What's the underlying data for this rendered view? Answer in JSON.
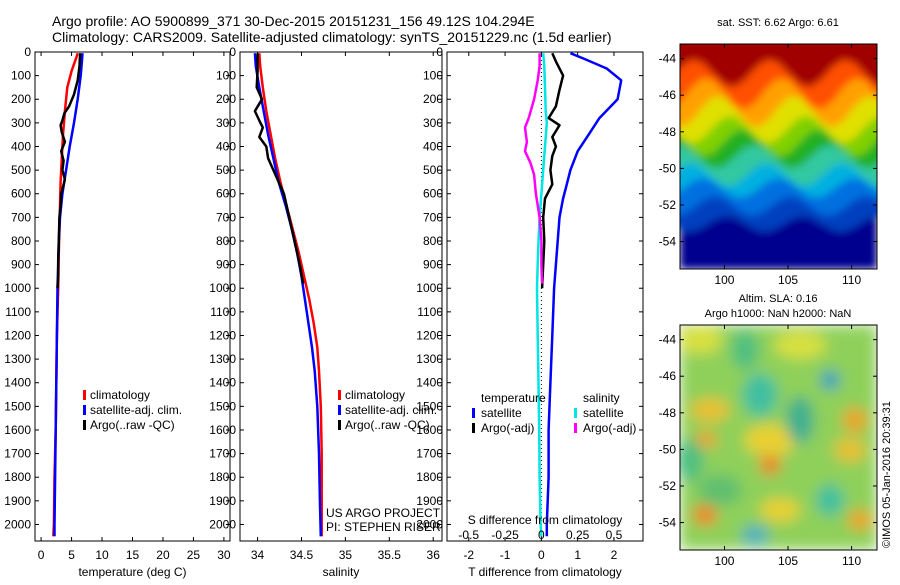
{
  "header": {
    "line1": "Argo profile: AO 5900899_371 30-Dec-2015 20151231_156 49.12S 104.294E",
    "line2": "Climatology: CARS2009. Satellite-adjusted climatology: synTS_20151229.nc (1.5d earlier)"
  },
  "project": {
    "line1": "US ARGO PROJECT",
    "line2": "PI: STEPHEN RISER"
  },
  "watermark": "©IMOS 05-Jan-2016 20:39:31",
  "colors": {
    "climatology": "#ff0000",
    "satellite": "#0000ff",
    "argo": "#000000",
    "sat_salinity": "#00e5e5",
    "argo_salinity": "#ff00ff"
  },
  "chart_data": [
    {
      "type": "line",
      "id": "temperature",
      "xlabel": "temperature (deg C)",
      "ylabel": "",
      "xlim": [
        -1,
        31
      ],
      "ylim": [
        2070,
        0
      ],
      "xticks": [
        0,
        5,
        10,
        15,
        20,
        25,
        30
      ],
      "yticks": [
        0,
        100,
        200,
        300,
        400,
        500,
        600,
        700,
        800,
        900,
        1000,
        1100,
        1200,
        1300,
        1400,
        1500,
        1600,
        1700,
        1800,
        1900,
        2000
      ],
      "legend": [
        "climatology",
        "satellite-adj. clim.",
        "Argo(..raw -QC)"
      ],
      "series": [
        {
          "name": "climatology",
          "color": "#ff0000",
          "points": [
            [
              6.0,
              5
            ],
            [
              5.7,
              30
            ],
            [
              5.0,
              80
            ],
            [
              4.3,
              150
            ],
            [
              3.9,
              250
            ],
            [
              3.6,
              350
            ],
            [
              3.4,
              450
            ],
            [
              3.2,
              550
            ],
            [
              3.1,
              650
            ],
            [
              3.0,
              750
            ],
            [
              2.9,
              850
            ],
            [
              2.8,
              1000
            ],
            [
              2.6,
              1200
            ],
            [
              2.5,
              1400
            ],
            [
              2.4,
              1600
            ],
            [
              2.2,
              1800
            ],
            [
              2.1,
              2000
            ],
            [
              2.0,
              2050
            ]
          ]
        },
        {
          "name": "satellite-adj. clim.",
          "color": "#0000ff",
          "points": [
            [
              6.8,
              5
            ],
            [
              6.7,
              40
            ],
            [
              6.5,
              100
            ],
            [
              6.0,
              200
            ],
            [
              5.4,
              300
            ],
            [
              4.7,
              400
            ],
            [
              4.1,
              500
            ],
            [
              3.5,
              600
            ],
            [
              3.1,
              700
            ],
            [
              2.9,
              800
            ],
            [
              2.8,
              900
            ],
            [
              2.7,
              1000
            ],
            [
              2.6,
              1200
            ],
            [
              2.5,
              1400
            ],
            [
              2.4,
              1600
            ],
            [
              2.3,
              1800
            ],
            [
              2.2,
              2000
            ],
            [
              2.2,
              2050
            ]
          ]
        },
        {
          "name": "Argo(..raw -QC)",
          "color": "#000000",
          "points": [
            [
              6.4,
              5
            ],
            [
              6.3,
              60
            ],
            [
              6.0,
              120
            ],
            [
              5.4,
              180
            ],
            [
              4.6,
              230
            ],
            [
              3.8,
              260
            ],
            [
              3.5,
              290
            ],
            [
              3.2,
              310
            ],
            [
              3.4,
              340
            ],
            [
              3.9,
              380
            ],
            [
              3.3,
              420
            ],
            [
              3.7,
              460
            ],
            [
              3.5,
              500
            ],
            [
              3.9,
              540
            ],
            [
              3.3,
              600
            ],
            [
              3.2,
              650
            ],
            [
              3.0,
              700
            ],
            [
              2.9,
              800
            ],
            [
              2.8,
              880
            ],
            [
              2.8,
              950
            ],
            [
              2.7,
              1000
            ]
          ]
        }
      ]
    },
    {
      "type": "line",
      "id": "salinity",
      "xlabel": "salinity",
      "ylabel": "",
      "xlim": [
        33.8,
        36.1
      ],
      "ylim": [
        2070,
        0
      ],
      "xticks": [
        34,
        34.5,
        35,
        35.5,
        36
      ],
      "yticks": [
        0,
        100,
        200,
        300,
        400,
        500,
        600,
        700,
        800,
        900,
        1000,
        1100,
        1200,
        1300,
        1400,
        1500,
        1600,
        1700,
        1800,
        1900,
        2000
      ],
      "legend": [
        "climatology",
        "satellite-adj. clim.",
        "Argo(..raw -QC)"
      ],
      "series": [
        {
          "name": "climatology",
          "color": "#ff0000",
          "points": [
            [
              34.02,
              5
            ],
            [
              34.03,
              60
            ],
            [
              34.06,
              150
            ],
            [
              34.1,
              250
            ],
            [
              34.15,
              350
            ],
            [
              34.2,
              450
            ],
            [
              34.26,
              550
            ],
            [
              34.33,
              650
            ],
            [
              34.4,
              750
            ],
            [
              34.47,
              850
            ],
            [
              34.53,
              950
            ],
            [
              34.59,
              1050
            ],
            [
              34.64,
              1150
            ],
            [
              34.68,
              1250
            ],
            [
              34.7,
              1350
            ],
            [
              34.72,
              1500
            ],
            [
              34.73,
              1700
            ],
            [
              34.73,
              1900
            ],
            [
              34.73,
              2050
            ]
          ]
        },
        {
          "name": "satellite-adj. clim.",
          "color": "#0000ff",
          "points": [
            [
              33.97,
              5
            ],
            [
              33.98,
              60
            ],
            [
              34.02,
              150
            ],
            [
              34.07,
              250
            ],
            [
              34.12,
              350
            ],
            [
              34.18,
              450
            ],
            [
              34.24,
              550
            ],
            [
              34.32,
              650
            ],
            [
              34.39,
              750
            ],
            [
              34.45,
              850
            ],
            [
              34.5,
              950
            ],
            [
              34.54,
              1050
            ],
            [
              34.58,
              1150
            ],
            [
              34.62,
              1250
            ],
            [
              34.65,
              1350
            ],
            [
              34.68,
              1500
            ],
            [
              34.7,
              1700
            ],
            [
              34.71,
              1900
            ],
            [
              34.72,
              2050
            ]
          ]
        },
        {
          "name": "Argo(..raw -QC)",
          "color": "#000000",
          "points": [
            [
              34.0,
              5
            ],
            [
              34.0,
              80
            ],
            [
              33.99,
              150
            ],
            [
              34.05,
              200
            ],
            [
              33.97,
              250
            ],
            [
              34.02,
              290
            ],
            [
              34.06,
              320
            ],
            [
              34.02,
              360
            ],
            [
              34.1,
              400
            ],
            [
              34.12,
              450
            ],
            [
              34.18,
              500
            ],
            [
              34.24,
              550
            ],
            [
              34.3,
              600
            ],
            [
              34.36,
              700
            ],
            [
              34.42,
              800
            ],
            [
              34.48,
              900
            ],
            [
              34.52,
              980
            ]
          ]
        }
      ]
    },
    {
      "type": "line",
      "id": "difference",
      "xlabel": "T difference from climatology",
      "x2label": "S difference from climatology",
      "ylabel": "",
      "xlim": [
        -2.6,
        2.8
      ],
      "ylim": [
        2070,
        0
      ],
      "xticks": [
        -2,
        -1,
        0,
        1,
        2
      ],
      "x2ticks": [
        "-0.5",
        "-0.25",
        "0",
        "0.25",
        "0.5"
      ],
      "yticks": [
        0,
        100,
        200,
        300,
        400,
        500,
        600,
        700,
        800,
        900,
        1000,
        1100,
        1200,
        1300,
        1400,
        1500,
        1600,
        1700,
        1800,
        1900,
        2000
      ],
      "legend_left_title": "temperature",
      "legend_right_title": "salinity",
      "legend": [
        "satellite",
        "Argo(-adj)",
        "satellite",
        "Argo(-adj)"
      ],
      "series": [
        {
          "name": "temperature satellite",
          "color": "#0000ff",
          "points": [
            [
              0.8,
              5
            ],
            [
              1.2,
              30
            ],
            [
              1.8,
              70
            ],
            [
              2.2,
              120
            ],
            [
              2.1,
              200
            ],
            [
              1.6,
              280
            ],
            [
              1.3,
              350
            ],
            [
              1.0,
              420
            ],
            [
              0.8,
              500
            ],
            [
              0.7,
              560
            ],
            [
              0.6,
              620
            ],
            [
              0.5,
              700
            ],
            [
              0.45,
              800
            ],
            [
              0.4,
              900
            ],
            [
              0.35,
              1000
            ],
            [
              0.3,
              1200
            ],
            [
              0.25,
              1400
            ],
            [
              0.2,
              1600
            ],
            [
              0.2,
              1800
            ],
            [
              0.15,
              2000
            ],
            [
              0.15,
              2050
            ]
          ]
        },
        {
          "name": "temperature Argo(-adj)",
          "color": "#000000",
          "points": [
            [
              0.3,
              5
            ],
            [
              0.4,
              40
            ],
            [
              0.6,
              100
            ],
            [
              0.5,
              160
            ],
            [
              0.4,
              230
            ],
            [
              0.2,
              280
            ],
            [
              0.5,
              310
            ],
            [
              0.3,
              360
            ],
            [
              0.4,
              400
            ],
            [
              0.3,
              440
            ],
            [
              0.25,
              500
            ],
            [
              0.3,
              560
            ],
            [
              0.1,
              620
            ],
            [
              0.05,
              700
            ],
            [
              0.08,
              800
            ],
            [
              0.05,
              900
            ],
            [
              0.02,
              1000
            ]
          ]
        },
        {
          "name": "salinity satellite",
          "color": "#00e5e5",
          "points": [
            [
              0.05,
              5
            ],
            [
              0.08,
              60
            ],
            [
              0.1,
              150
            ],
            [
              0.12,
              250
            ],
            [
              0.15,
              300
            ],
            [
              0.1,
              400
            ],
            [
              0.05,
              500
            ],
            [
              0.0,
              600
            ],
            [
              -0.05,
              700
            ],
            [
              -0.08,
              800
            ],
            [
              -0.1,
              900
            ],
            [
              -0.12,
              1000
            ],
            [
              -0.1,
              1200
            ],
            [
              -0.08,
              1400
            ],
            [
              -0.06,
              1600
            ],
            [
              -0.05,
              1800
            ],
            [
              -0.02,
              2000
            ],
            [
              0.0,
              2050
            ]
          ]
        },
        {
          "name": "salinity Argo(-adj)",
          "color": "#ff00ff",
          "points": [
            [
              -0.05,
              5
            ],
            [
              -0.05,
              60
            ],
            [
              -0.1,
              120
            ],
            [
              -0.2,
              200
            ],
            [
              -0.35,
              280
            ],
            [
              -0.45,
              320
            ],
            [
              -0.4,
              380
            ],
            [
              -0.45,
              420
            ],
            [
              -0.3,
              470
            ],
            [
              -0.2,
              520
            ],
            [
              -0.15,
              600
            ],
            [
              -0.05,
              700
            ],
            [
              0.0,
              800
            ],
            [
              0.0,
              900
            ],
            [
              0.02,
              980
            ]
          ]
        }
      ]
    },
    {
      "type": "heatmap",
      "id": "sst_map",
      "title": "sat. SST: 6.62 Argo: 6.61",
      "xticks": [
        100,
        105,
        110
      ],
      "yticks": [
        -44,
        -46,
        -48,
        -50,
        -52,
        -54
      ],
      "xlim": [
        96.5,
        112
      ],
      "ylim": [
        -55.5,
        -43.2
      ]
    },
    {
      "type": "heatmap",
      "id": "sla_map",
      "title_line1": "Altim. SLA: 0.16",
      "title_line2": "Argo h1000: NaN h2000: NaN",
      "xticks": [
        100,
        105,
        110
      ],
      "yticks": [
        -44,
        -46,
        -48,
        -50,
        -52,
        -54
      ],
      "xlim": [
        96.5,
        112
      ],
      "ylim": [
        -55.5,
        -43.2
      ]
    }
  ]
}
